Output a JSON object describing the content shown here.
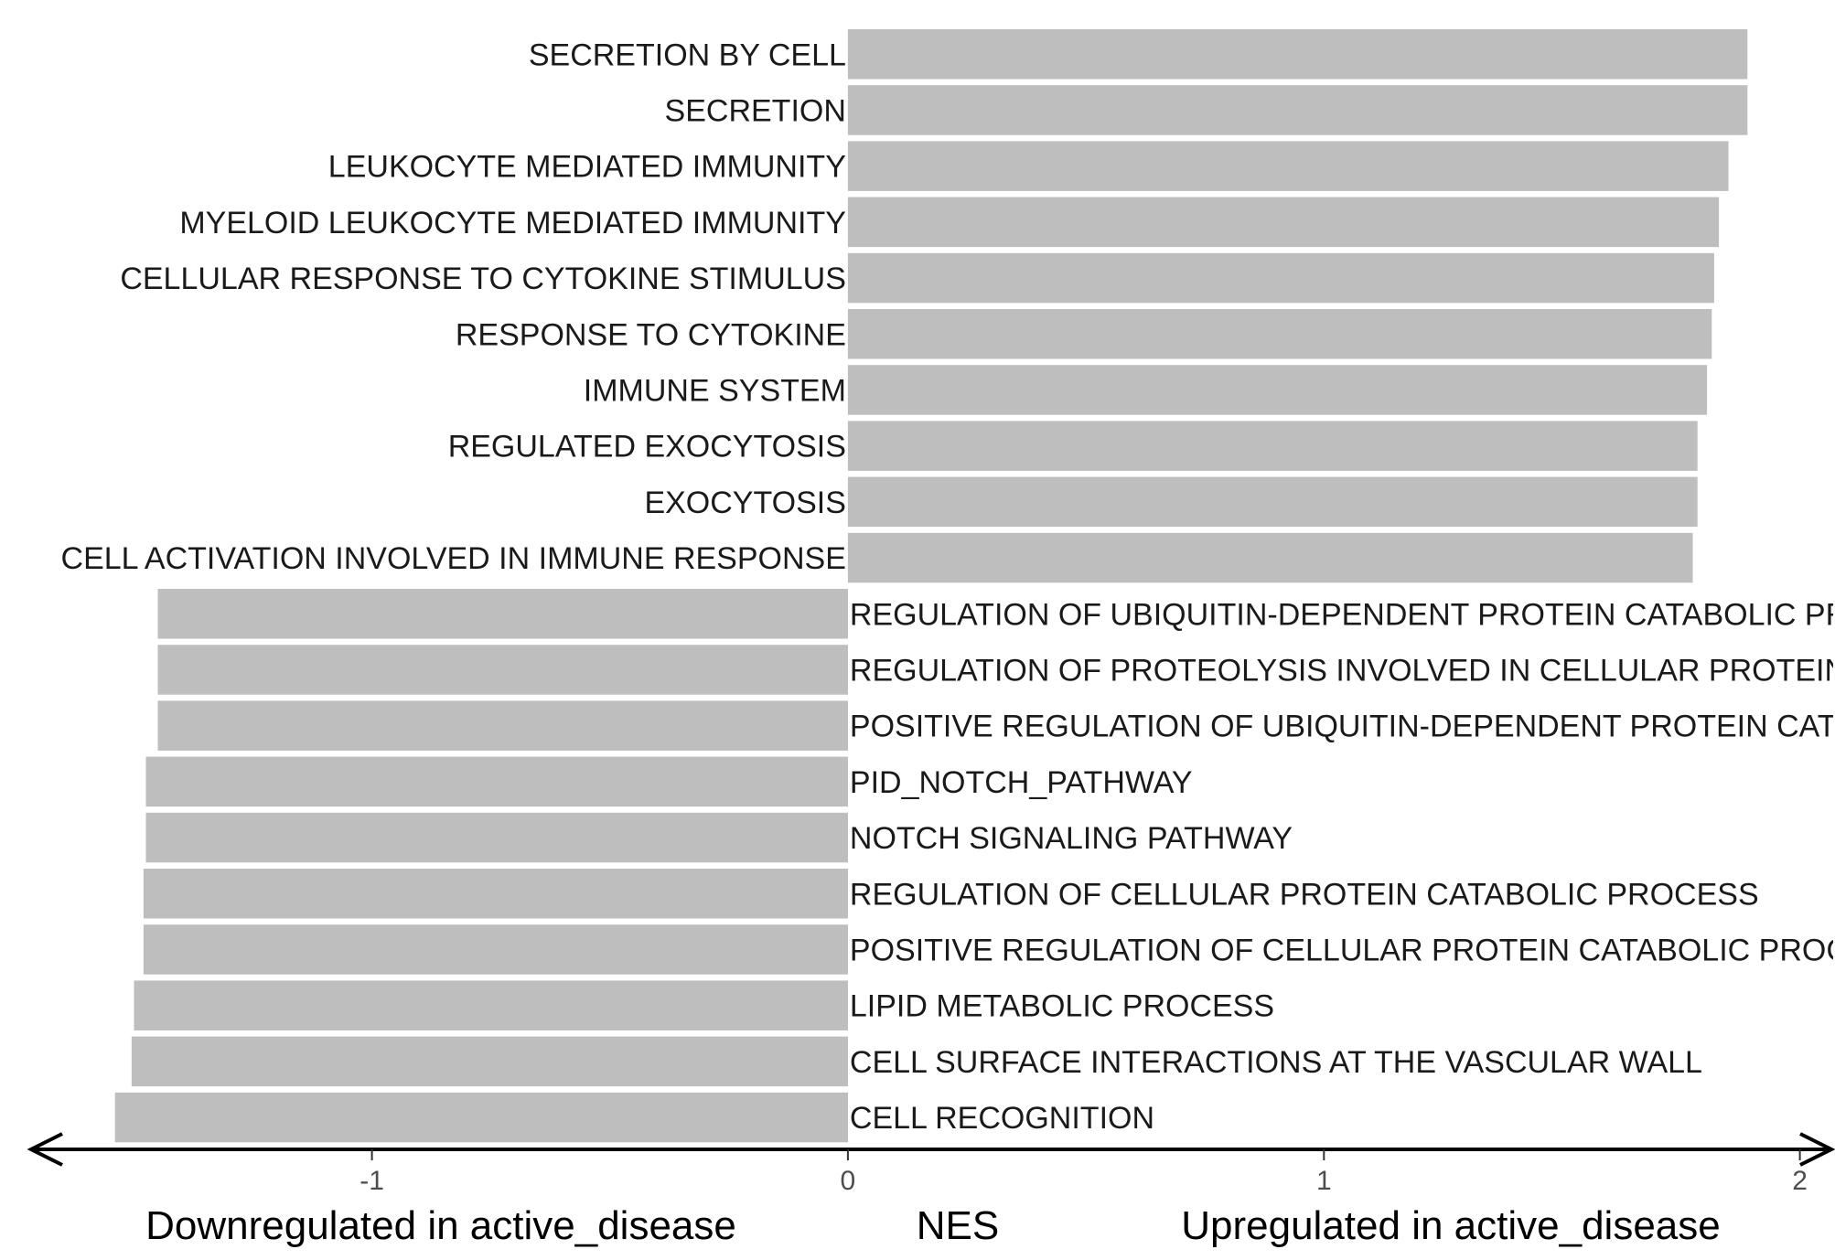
{
  "chart_data": {
    "type": "bar",
    "orientation": "horizontal",
    "xlabel": "NES",
    "xlabel_left": "Downregulated in active_disease",
    "xlabel_right": "Upregulated in active_disease",
    "xlim": [
      -1.72,
      2.07
    ],
    "xticks": [
      -1,
      0,
      1,
      2
    ],
    "grid": false,
    "bar_color": "#bebebe",
    "axis_color": "#000000",
    "categories": [
      "SECRETION BY CELL",
      "SECRETION",
      "LEUKOCYTE MEDIATED IMMUNITY",
      "MYELOID LEUKOCYTE MEDIATED IMMUNITY",
      "CELLULAR RESPONSE TO CYTOKINE STIMULUS",
      "RESPONSE TO CYTOKINE",
      "IMMUNE SYSTEM",
      "REGULATED EXOCYTOSIS",
      "EXOCYTOSIS",
      "CELL ACTIVATION INVOLVED IN IMMUNE RESPONSE",
      "REGULATION OF UBIQUITIN-DEPENDENT PROTEIN CATABOLIC PROCESS",
      "REGULATION OF PROTEOLYSIS INVOLVED IN CELLULAR PROTEIN CATABOLIC PROCESS",
      "POSITIVE REGULATION OF UBIQUITIN-DEPENDENT PROTEIN CATABOLIC PROCESS",
      "PID_NOTCH_PATHWAY",
      "NOTCH SIGNALING PATHWAY",
      "REGULATION OF CELLULAR PROTEIN CATABOLIC PROCESS",
      "POSITIVE REGULATION OF CELLULAR PROTEIN CATABOLIC PROCESS",
      "LIPID METABOLIC PROCESS",
      "CELL SURFACE INTERACTIONS AT THE VASCULAR WALL",
      "CELL RECOGNITION"
    ],
    "values": [
      1.89,
      1.89,
      1.85,
      1.83,
      1.82,
      1.815,
      1.805,
      1.785,
      1.785,
      1.775,
      -1.45,
      -1.45,
      -1.45,
      -1.475,
      -1.475,
      -1.48,
      -1.48,
      -1.5,
      -1.505,
      -1.54
    ]
  }
}
